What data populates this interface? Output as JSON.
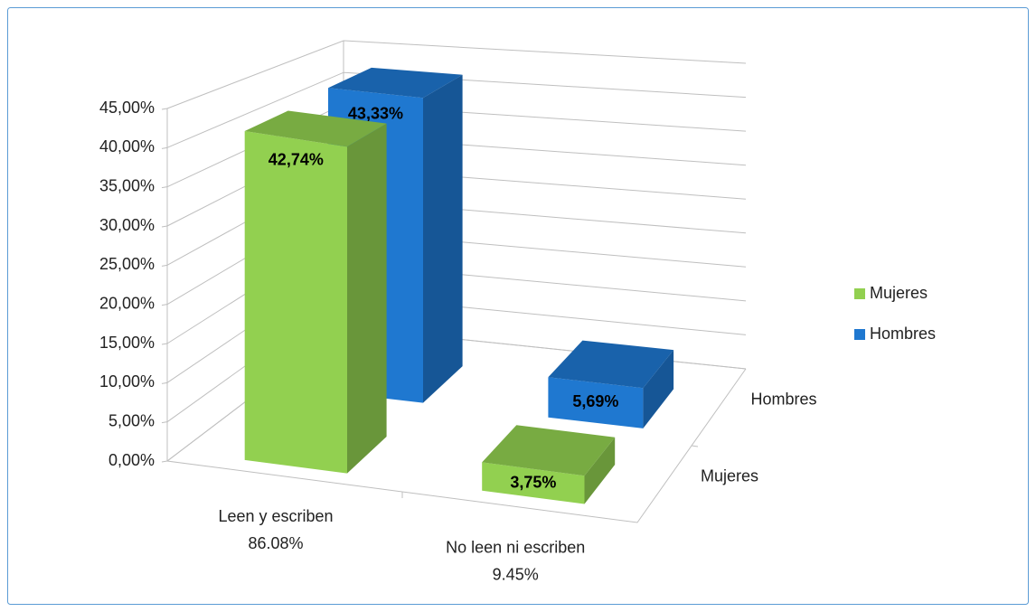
{
  "chart_data": {
    "type": "bar3d",
    "categories": [
      [
        "Leen y escriben",
        "86.08%"
      ],
      [
        "No leen ni escriben",
        "9.45%"
      ]
    ],
    "series": [
      {
        "name": "Mujeres",
        "color": "#92d050",
        "values": [
          42.74,
          3.75
        ],
        "value_labels": [
          "42,74%",
          "3,75%"
        ]
      },
      {
        "name": "Hombres",
        "color": "#1f78d0",
        "values": [
          43.33,
          5.69
        ],
        "value_labels": [
          "43,33%",
          "5,69%"
        ]
      }
    ],
    "ylim": [
      0,
      45
    ],
    "yticks": [
      {
        "value": 0,
        "label": "0,00%"
      },
      {
        "value": 5,
        "label": "5,00%"
      },
      {
        "value": 10,
        "label": "10,00%"
      },
      {
        "value": 15,
        "label": "15,00%"
      },
      {
        "value": 20,
        "label": "20,00%"
      },
      {
        "value": 25,
        "label": "25,00%"
      },
      {
        "value": 30,
        "label": "30,00%"
      },
      {
        "value": 35,
        "label": "35,00%"
      },
      {
        "value": 40,
        "label": "40,00%"
      },
      {
        "value": 45,
        "label": "45,00%"
      }
    ],
    "grid": true,
    "legend": "right"
  }
}
